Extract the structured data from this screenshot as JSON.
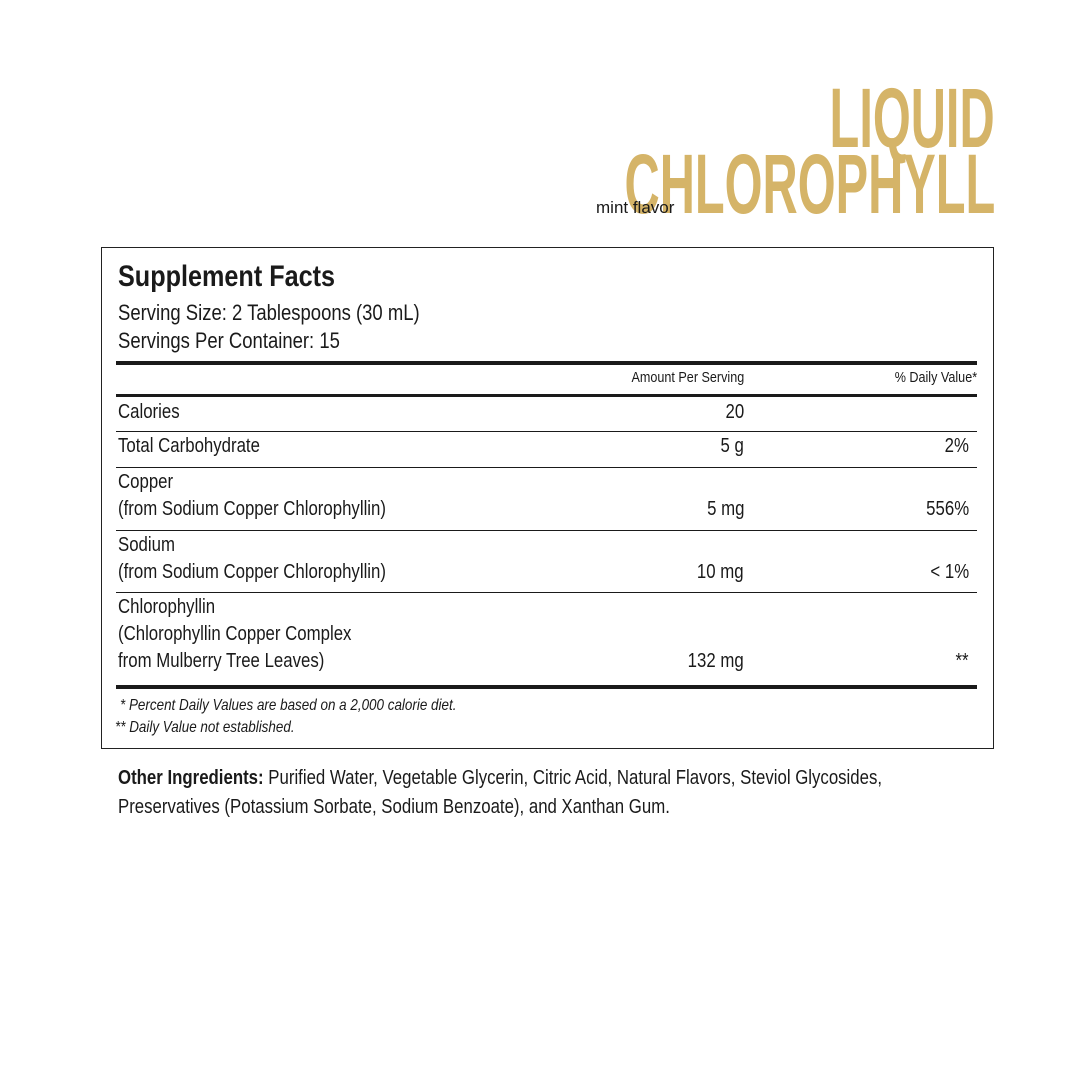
{
  "header": {
    "title_line1": "LIQUID",
    "title_line2": "CHLOROPHYLL",
    "flavor": "mint flavor"
  },
  "facts": {
    "title": "Supplement Facts",
    "serving_size": "Serving Size: 2 Tablespoons (30 mL)",
    "servings_per_container": "Servings Per Container: 15",
    "columns": [
      "Amount Per Serving",
      "% Daily Value*"
    ],
    "rows": [
      {
        "name": [
          "Calories"
        ],
        "amount": "20"
      },
      {
        "name": [
          "Total Carbohydrate"
        ],
        "amount": "5 g",
        "dv": "2%"
      },
      {
        "name": [
          "Copper",
          "(from Sodium Copper Chlorophyllin)"
        ],
        "amount": "5 mg",
        "dv": "556%"
      },
      {
        "name": [
          "Sodium",
          "(from Sodium Copper Chlorophyllin)"
        ],
        "amount": "10 mg",
        "dv": "< 1%"
      },
      {
        "name": [
          "Chlorophyllin",
          "(Chlorophyllin Copper Complex",
          "from Mulberry Tree Leaves)"
        ],
        "amount": "132 mg",
        "dv": "**"
      }
    ],
    "footnotes": [
      "* Percent Daily Values are based on a 2,000 calorie diet.",
      "** Daily Value not established."
    ]
  },
  "other_ingredients": {
    "label": "Other Ingredients:",
    "lines": [
      "Purified Water, Vegetable Glycerin, Citric Acid, Natural Flavors, Steviol Glycosides,",
      "Preservatives (Potassium Sorbate, Sodium Benzoate), and Xanthan Gum."
    ]
  }
}
